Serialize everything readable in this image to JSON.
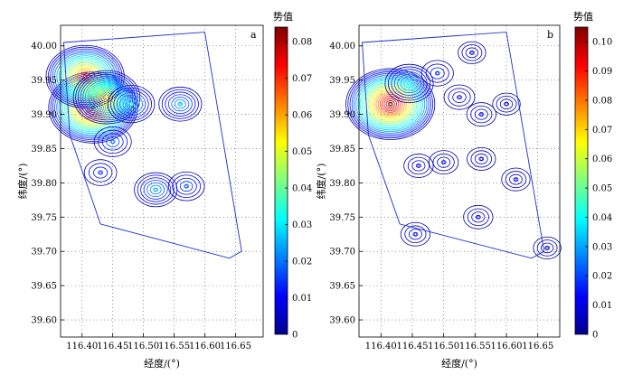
{
  "colorscale": [
    "#00008f",
    "#0000ff",
    "#0080ff",
    "#00ffff",
    "#80ff80",
    "#ffff00",
    "#ff8000",
    "#ff0000",
    "#800000"
  ],
  "chart_data": [
    {
      "type": "contour",
      "panel_label": "a",
      "xlabel": "经度/(°)",
      "ylabel": "纬度/(°)",
      "xlim": [
        116.365,
        116.695
      ],
      "ylim": [
        39.575,
        40.03
      ],
      "xticks": [
        116.4,
        116.45,
        116.5,
        116.55,
        116.6,
        116.65
      ],
      "xtick_labels": [
        "116.40",
        "116.45",
        "116.50",
        "116.55",
        "116.60",
        "116.65"
      ],
      "yticks": [
        39.6,
        39.65,
        39.7,
        39.75,
        39.8,
        39.85,
        39.9,
        39.95,
        40.0
      ],
      "ytick_labels": [
        "39.60",
        "39.65",
        "39.70",
        "39.75",
        "39.80",
        "39.85",
        "39.90",
        "39.95",
        "40.00"
      ],
      "grid": true,
      "colorbar": {
        "title": "势值",
        "range": [
          0,
          0.084
        ],
        "ticks": [
          0,
          0.01,
          0.02,
          0.03,
          0.04,
          0.05,
          0.06,
          0.07,
          0.08
        ],
        "tick_labels": [
          "0",
          "0.01",
          "0.02",
          "0.03",
          "0.04",
          "0.05",
          "0.06",
          "0.07",
          "0.08"
        ]
      },
      "peaks": [
        {
          "x": 116.418,
          "y": 39.91,
          "value": 0.084
        },
        {
          "x": 116.405,
          "y": 39.955,
          "value": 0.07
        },
        {
          "x": 116.44,
          "y": 39.925,
          "value": 0.055
        },
        {
          "x": 116.48,
          "y": 39.915,
          "value": 0.03
        },
        {
          "x": 116.56,
          "y": 39.915,
          "value": 0.025
        },
        {
          "x": 116.45,
          "y": 39.86,
          "value": 0.02
        },
        {
          "x": 116.43,
          "y": 39.815,
          "value": 0.015
        },
        {
          "x": 116.52,
          "y": 39.79,
          "value": 0.025
        },
        {
          "x": 116.57,
          "y": 39.795,
          "value": 0.018
        }
      ]
    },
    {
      "type": "contour",
      "panel_label": "b",
      "xlabel": "经度/(°)",
      "ylabel": "纬度/(°)",
      "xlim": [
        116.365,
        116.685
      ],
      "ylim": [
        39.575,
        40.03
      ],
      "xticks": [
        116.4,
        116.45,
        116.5,
        116.55,
        116.6,
        116.65
      ],
      "xtick_labels": [
        "116.40",
        "116.45",
        "116.50",
        "116.55",
        "116.60",
        "116.65"
      ],
      "yticks": [
        39.6,
        39.65,
        39.7,
        39.75,
        39.8,
        39.85,
        39.9,
        39.95,
        40.0
      ],
      "ytick_labels": [
        "39.60",
        "39.65",
        "39.70",
        "39.75",
        "39.80",
        "39.85",
        "39.90",
        "39.95",
        "40.00"
      ],
      "grid": true,
      "colorbar": {
        "title": "势值",
        "range": [
          0,
          0.105
        ],
        "ticks": [
          0,
          0.01,
          0.02,
          0.03,
          0.04,
          0.05,
          0.06,
          0.07,
          0.08,
          0.09,
          0.1
        ],
        "tick_labels": [
          "0",
          "0.01",
          "0.02",
          "0.03",
          "0.04",
          "0.05",
          "0.06",
          "0.07",
          "0.08",
          "0.09",
          "0.10"
        ]
      },
      "peaks": [
        {
          "x": 116.415,
          "y": 39.915,
          "value": 0.105
        },
        {
          "x": 116.445,
          "y": 39.945,
          "value": 0.04
        },
        {
          "x": 116.49,
          "y": 39.96,
          "value": 0.018
        },
        {
          "x": 116.525,
          "y": 39.925,
          "value": 0.015
        },
        {
          "x": 116.56,
          "y": 39.9,
          "value": 0.012
        },
        {
          "x": 116.46,
          "y": 39.825,
          "value": 0.012
        },
        {
          "x": 116.5,
          "y": 39.83,
          "value": 0.012
        },
        {
          "x": 116.56,
          "y": 39.835,
          "value": 0.01
        },
        {
          "x": 116.545,
          "y": 39.99,
          "value": 0.008
        },
        {
          "x": 116.6,
          "y": 39.915,
          "value": 0.008
        },
        {
          "x": 116.615,
          "y": 39.805,
          "value": 0.01
        },
        {
          "x": 116.555,
          "y": 39.75,
          "value": 0.012
        },
        {
          "x": 116.455,
          "y": 39.725,
          "value": 0.012
        },
        {
          "x": 116.665,
          "y": 39.705,
          "value": 0.008
        }
      ]
    }
  ]
}
